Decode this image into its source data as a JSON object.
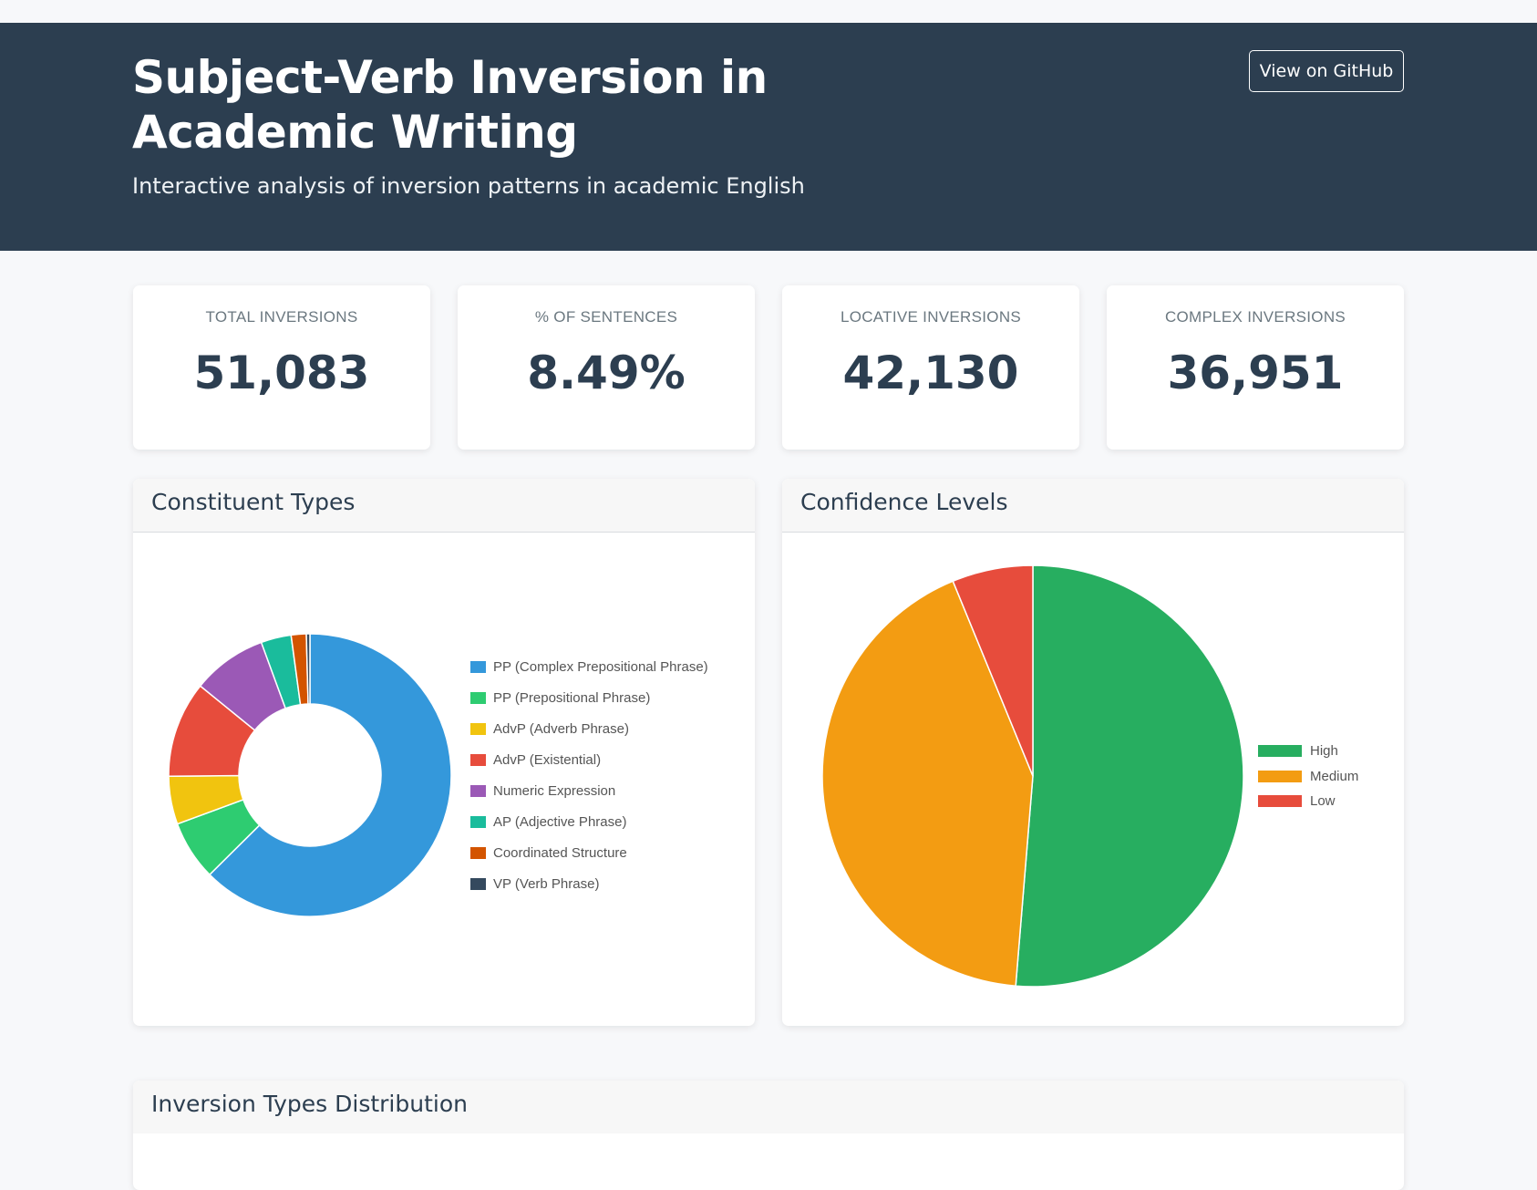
{
  "header": {
    "title": "Subject-Verb Inversion in Academic Writing",
    "subtitle": "Interactive analysis of inversion patterns in academic English",
    "github_label": "View on GitHub"
  },
  "stats": [
    {
      "label": "TOTAL INVERSIONS",
      "value": "51,083"
    },
    {
      "label": "% OF SENTENCES",
      "value": "8.49%"
    },
    {
      "label": "LOCATIVE INVERSIONS",
      "value": "42,130"
    },
    {
      "label": "COMPLEX INVERSIONS",
      "value": "36,951"
    }
  ],
  "panels": {
    "constituent_title": "Constituent Types",
    "confidence_title": "Confidence Levels",
    "distribution_title": "Inversion Types Distribution"
  },
  "chart_data": [
    {
      "type": "pie",
      "variant": "doughnut",
      "legend_position": "right",
      "labels": [
        "PP (Complex Prepositional Phrase)",
        "PP (Prepositional Phrase)",
        "AdvP (Adverb Phrase)",
        "AdvP (Existential)",
        "Numeric Expression",
        "AP (Adjective Phrase)",
        "Coordinated Structure",
        "VP (Verb Phrase)"
      ],
      "values": [
        61.5,
        6.7,
        5.4,
        10.8,
        8.4,
        3.4,
        1.7,
        0.4
      ],
      "colors": [
        "#3498db",
        "#2ecc71",
        "#f1c40f",
        "#e74c3c",
        "#9b59b6",
        "#1abc9c",
        "#d35400",
        "#34495e"
      ]
    },
    {
      "type": "pie",
      "legend_position": "right",
      "labels": [
        "High",
        "Medium",
        "Low"
      ],
      "values": [
        51.3,
        42.5,
        6.2
      ],
      "colors": [
        "#27ae60",
        "#f39c12",
        "#e74c3c"
      ]
    }
  ]
}
